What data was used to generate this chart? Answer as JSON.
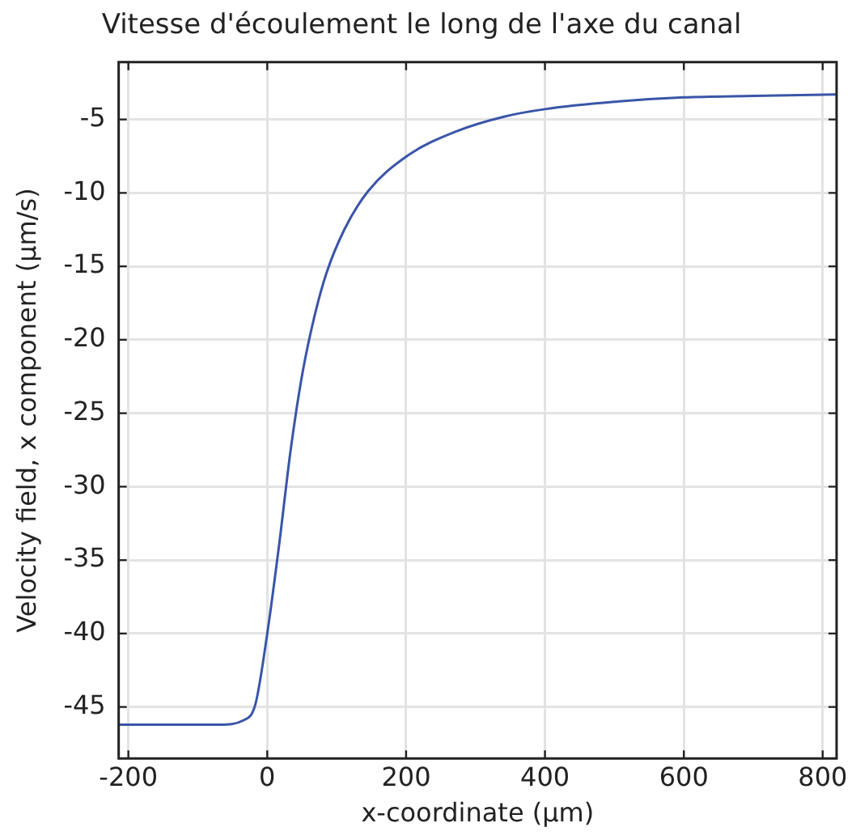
{
  "chart_data": {
    "type": "line",
    "title": "Vitesse d'écoulement le long de l'axe du canal",
    "xlabel": "x-coordinate (µm)",
    "ylabel": "Velocity field, x component (µm/s)",
    "x": [
      -214,
      -100,
      -68,
      -34,
      -17,
      0,
      17,
      34,
      51,
      68,
      85,
      111,
      145,
      201,
      273,
      342,
      400,
      500,
      600,
      700,
      820
    ],
    "series": [
      {
        "color": "#3a55a8",
        "values": [
          -46.2,
          -46.2,
          -46.2,
          -45.9,
          -44.8,
          -40.0,
          -34.0,
          -27.4,
          -22.2,
          -18.4,
          -15.5,
          -12.5,
          -9.9,
          -7.5,
          -5.8,
          -4.8,
          -4.3,
          -3.8,
          -3.5,
          -3.4,
          -3.3
        ]
      }
    ],
    "xlim": [
      -214,
      820
    ],
    "xticks": [
      -200,
      0,
      200,
      400,
      600,
      800
    ],
    "ylim": [
      -48.5,
      -1.1
    ],
    "yticks": [
      -45,
      -40,
      -35,
      -30,
      -25,
      -20,
      -15,
      -10,
      -5
    ],
    "grid": true,
    "legend": false,
    "marker": "none",
    "line_style": "solid"
  }
}
